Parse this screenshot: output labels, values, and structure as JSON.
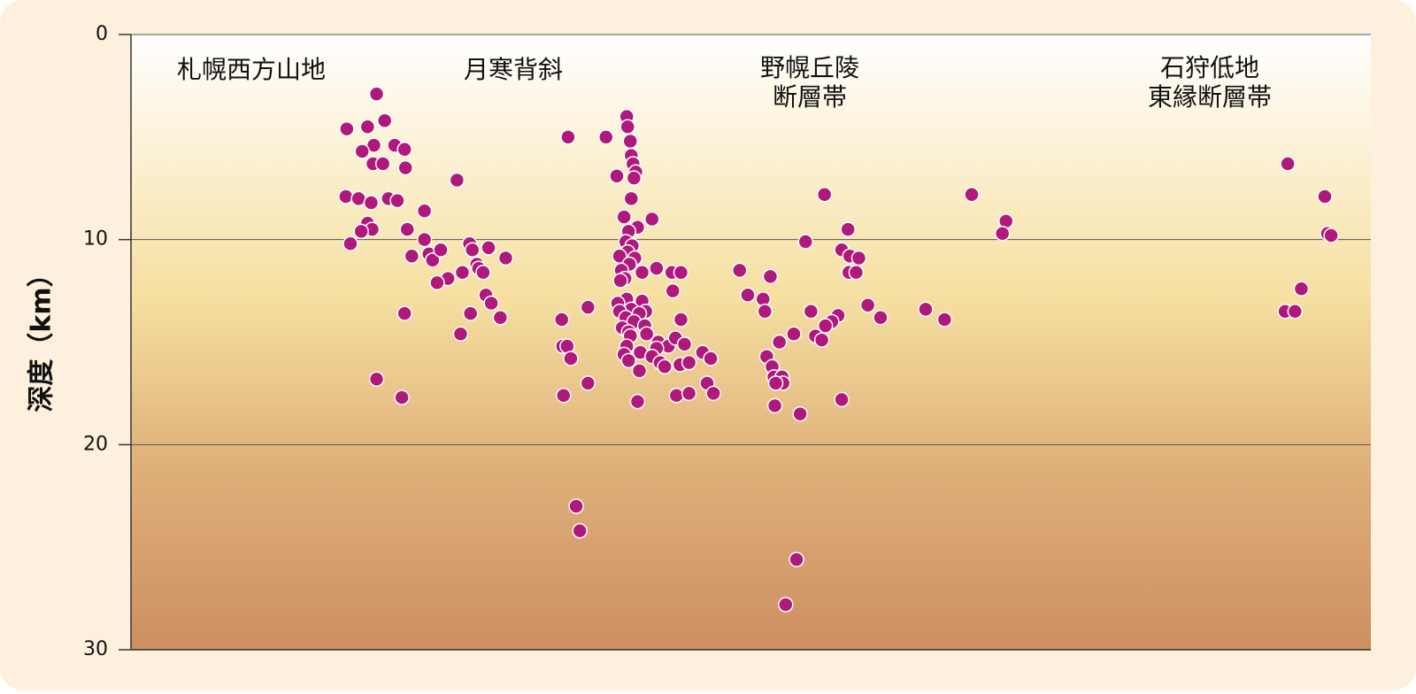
{
  "chart_data": {
    "type": "scatter",
    "ylabel": "深度（km）",
    "annotations": [
      [
        "札幌西方山地"
      ],
      [
        "月寒背斜"
      ],
      [
        "野幌丘陵",
        "断層帯"
      ],
      [
        "石狩低地",
        "東縁断層帯"
      ]
    ],
    "xlim": [
      0,
      1373
    ],
    "ylim": [
      0,
      30
    ],
    "yticks": [
      0,
      10,
      20,
      30
    ],
    "y_inverted": true,
    "grid": true,
    "color": "#b0197c",
    "x": [
      239,
      272,
      262,
      281,
      269,
      256,
      292,
      303,
      268,
      279,
      304,
      238,
      252,
      266,
      285,
      295,
      325,
      262,
      267,
      255,
      306,
      243,
      325,
      311,
      330,
      334,
      343,
      351,
      339,
      303,
      272,
      300,
      361,
      375,
      378,
      396,
      383,
      385,
      390,
      367,
      415,
      393,
      399,
      376,
      409,
      365,
      484,
      477,
      506,
      478,
      483,
      487,
      479,
      506,
      493,
      497,
      549,
      550,
      553,
      526,
      554,
      556,
      559,
      538,
      557,
      554,
      546,
      577,
      561,
      551,
      548,
      555,
      550,
      541,
      558,
      552,
      543,
      566,
      547,
      542,
      582,
      599,
      609,
      600,
      549,
      566,
      539,
      554,
      541,
      570,
      563,
      548,
      557,
      569,
      544,
      551,
      571,
      553,
      584,
      549,
      595,
      582,
      564,
      546,
      577,
      603,
      613,
      633,
      551,
      586,
      608,
      591,
      618,
      642,
      563,
      609,
      638,
      604,
      618,
      645,
      561,
      768,
      747,
      794,
      787,
      796,
      806,
      674,
      708,
      795,
      803,
      683,
      700,
      702,
      753,
      783,
      816,
      830,
      776,
      769,
      734,
      758,
      765,
      718,
      704,
      710,
      712,
      721,
      722,
      714,
      787,
      713,
      741,
      737,
      725,
      880,
      901,
      931,
      969,
      965,
      1281,
      1322,
      1325,
      1329,
      1296,
      1278,
      1289
    ],
    "values": [
      4.6,
      2.9,
      4.5,
      4.2,
      5.4,
      5.7,
      5.4,
      5.6,
      6.3,
      6.3,
      6.5,
      7.9,
      8.0,
      8.2,
      8.0,
      8.1,
      8.6,
      9.2,
      9.5,
      9.6,
      9.5,
      10.2,
      10.0,
      10.8,
      10.7,
      11.0,
      10.5,
      11.9,
      12.1,
      13.6,
      16.8,
      17.7,
      7.1,
      10.2,
      10.5,
      10.4,
      11.2,
      11.4,
      11.6,
      11.6,
      10.9,
      12.7,
      13.1,
      13.6,
      13.8,
      14.6,
      5.0,
      13.9,
      13.3,
      15.2,
      15.2,
      15.8,
      17.6,
      17.0,
      23.0,
      24.2,
      4.0,
      4.5,
      5.2,
      5.0,
      5.9,
      6.3,
      6.7,
      6.9,
      7.0,
      8.0,
      8.9,
      9.0,
      9.4,
      9.6,
      10.1,
      10.3,
      10.6,
      10.8,
      10.9,
      11.2,
      11.5,
      11.6,
      11.9,
      12.0,
      11.4,
      11.6,
      11.6,
      12.5,
      12.9,
      13.0,
      13.1,
      13.4,
      13.5,
      13.5,
      13.6,
      13.8,
      14.0,
      14.2,
      14.3,
      14.5,
      14.6,
      14.7,
      15.0,
      15.2,
      15.2,
      15.3,
      15.5,
      15.6,
      15.7,
      14.8,
      15.1,
      15.5,
      15.9,
      16.0,
      16.1,
      16.2,
      16.0,
      15.8,
      16.4,
      13.9,
      17.0,
      17.6,
      17.5,
      17.5,
      17.9,
      7.8,
      10.1,
      9.5,
      10.5,
      10.8,
      10.9,
      11.5,
      11.8,
      11.6,
      11.6,
      12.7,
      12.9,
      13.5,
      13.5,
      13.7,
      13.2,
      13.8,
      14.0,
      14.2,
      14.6,
      14.7,
      14.9,
      15.0,
      15.7,
      16.2,
      16.7,
      16.7,
      17.0,
      17.0,
      17.8,
      18.1,
      18.5,
      25.6,
      27.8,
      13.4,
      13.9,
      7.8,
      9.1,
      9.7,
      6.3,
      7.9,
      9.7,
      9.8,
      12.4,
      13.5,
      13.5
    ]
  }
}
